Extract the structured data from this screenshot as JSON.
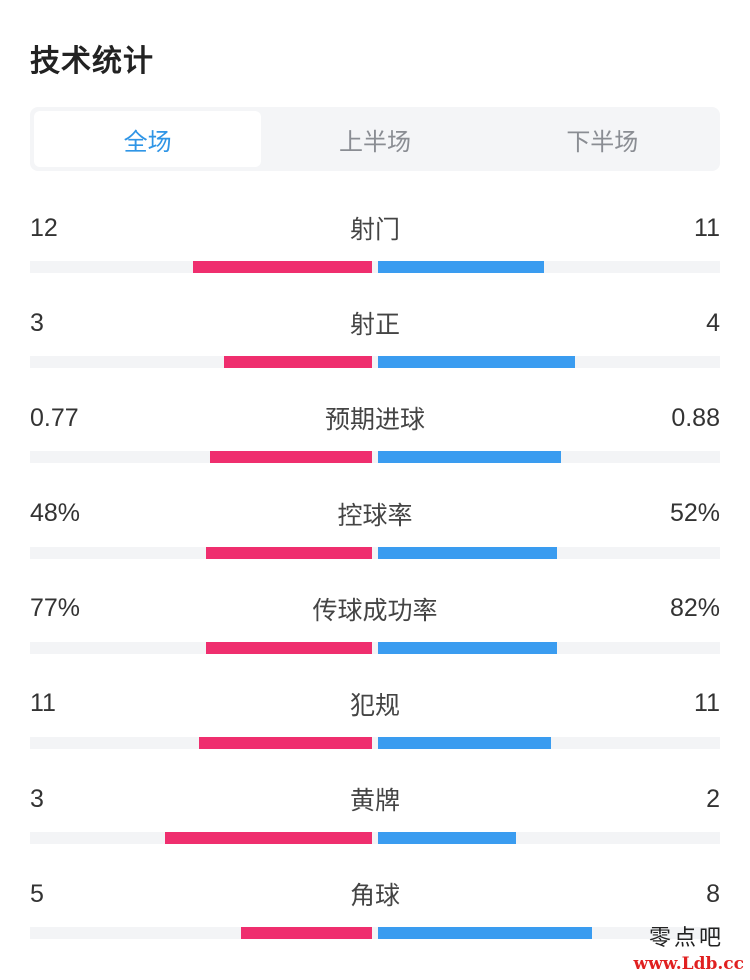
{
  "title": "技术统计",
  "tabs": [
    {
      "label": "全场",
      "active": true
    },
    {
      "label": "上半场",
      "active": false
    },
    {
      "label": "下半场",
      "active": false
    }
  ],
  "colors": {
    "home": "#ef2e6e",
    "away": "#3a9cf0",
    "active_tab": "#2f95e6"
  },
  "stats": [
    {
      "label": "射门",
      "home": "12",
      "away": "11",
      "home_share": 0.52,
      "away_share": 0.48
    },
    {
      "label": "射正",
      "home": "3",
      "away": "4",
      "home_share": 0.43,
      "away_share": 0.57
    },
    {
      "label": "预期进球",
      "home": "0.77",
      "away": "0.88",
      "home_share": 0.47,
      "away_share": 0.53
    },
    {
      "label": "控球率",
      "home": "48%",
      "away": "52%",
      "home_share": 0.48,
      "away_share": 0.52
    },
    {
      "label": "传球成功率",
      "home": "77%",
      "away": "82%",
      "home_share": 0.48,
      "away_share": 0.52
    },
    {
      "label": "犯规",
      "home": "11",
      "away": "11",
      "home_share": 0.5,
      "away_share": 0.5
    },
    {
      "label": "黄牌",
      "home": "3",
      "away": "2",
      "home_share": 0.6,
      "away_share": 0.4
    },
    {
      "label": "角球",
      "home": "5",
      "away": "8",
      "home_share": 0.38,
      "away_share": 0.62
    }
  ],
  "watermark": {
    "top": "零点吧",
    "bottom": "www.Ldb.cc"
  }
}
